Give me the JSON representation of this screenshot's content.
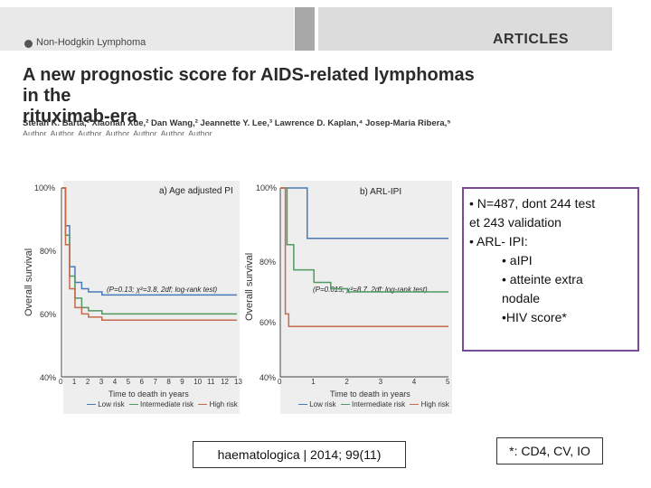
{
  "header": {
    "journal_section": "Non-Hodgkin Lymphoma",
    "section_label": "ARTICLES"
  },
  "article": {
    "title_line1": "A new prognostic score for AIDS-related lymphomas in the",
    "title_line2": "rituximab-era",
    "authors": "Stefan K. Barta,¹ Xiaonan Xue,² Dan Wang,² Jeannette Y. Lee,³ Lawrence D. Kaplan,⁴ Josep-Maria Ribera,⁵"
  },
  "figure": {
    "panel_a": {
      "title": "a) Age adjusted PI",
      "y_title": "Overall survival",
      "y_ticks": [
        "100%",
        "80%",
        "60%",
        "40%"
      ],
      "x_ticks": [
        "0",
        "1",
        "2",
        "3",
        "4",
        "5",
        "6",
        "7",
        "8",
        "9",
        "10",
        "11",
        "12",
        "13"
      ],
      "x_title": "Time to death in years",
      "stat": "(P=0.13; χ²=3.8, 2df; log-rank test)",
      "legend": [
        "Low risk",
        "Intermediate risk",
        "High risk"
      ]
    },
    "panel_b": {
      "title": "b) ARL-IPI",
      "y_title": "Overall survival",
      "y_ticks": [
        "100%",
        "80%",
        "60%",
        "40%"
      ],
      "x_ticks": [
        "0",
        "1",
        "2",
        "3",
        "4",
        "5"
      ],
      "x_title": "Time to death in years",
      "stat": "(P=0.015; χ²=8.7, 2df; log-rank test)",
      "legend": [
        "Low risk",
        "Intermediate risk",
        "High risk"
      ]
    },
    "series_colors": {
      "low_risk": "#4a7ab5",
      "intermediate_risk": "#4f9a62",
      "high_risk": "#c56a4a"
    }
  },
  "chart_data": [
    {
      "type": "line",
      "title": "a) Age adjusted PI",
      "xlabel": "Time to death in years",
      "ylabel": "Overall survival",
      "xlim": [
        0,
        13
      ],
      "ylim": [
        40,
        100
      ],
      "series": [
        {
          "name": "Low risk",
          "x": [
            0,
            0.3,
            0.6,
            1,
            1.5,
            2,
            3,
            5,
            8,
            13
          ],
          "y": [
            100,
            88,
            75,
            70,
            68,
            67,
            66,
            66,
            66,
            66
          ]
        },
        {
          "name": "Intermediate risk",
          "x": [
            0,
            0.3,
            0.6,
            1,
            1.5,
            2,
            3,
            5,
            8,
            13
          ],
          "y": [
            100,
            85,
            72,
            65,
            62,
            61,
            60,
            60,
            60,
            60
          ]
        },
        {
          "name": "High risk",
          "x": [
            0,
            0.3,
            0.6,
            1,
            1.5,
            2,
            3,
            5,
            8,
            13
          ],
          "y": [
            100,
            82,
            68,
            62,
            60,
            59,
            58,
            58,
            58,
            58
          ]
        }
      ]
    },
    {
      "type": "line",
      "title": "b) ARL-IPI",
      "xlabel": "Time to death in years",
      "ylabel": "Overall survival",
      "xlim": [
        0,
        5
      ],
      "ylim": [
        40,
        100
      ],
      "series": [
        {
          "name": "Low risk",
          "x": [
            0,
            0.4,
            0.8,
            5
          ],
          "y": [
            100,
            100,
            84,
            84
          ]
        },
        {
          "name": "Intermediate risk",
          "x": [
            0,
            0.2,
            0.4,
            1,
            1.5,
            2,
            5
          ],
          "y": [
            100,
            82,
            74,
            70,
            68,
            67,
            67
          ]
        },
        {
          "name": "High risk",
          "x": [
            0,
            0.15,
            0.25,
            5
          ],
          "y": [
            100,
            60,
            56,
            56
          ]
        }
      ]
    }
  ],
  "summary": {
    "line1": "• N=487, dont 244 test",
    "line2": "et 243 validation",
    "line3": "• ARL- IPI:",
    "line4": "• aIPI",
    "line5": "• atteinte extra",
    "line6": "nodale",
    "line7": "•HIV score*"
  },
  "citation": "haematologica | 2014; 99(11)",
  "footnote": "*: CD4, CV, IO"
}
